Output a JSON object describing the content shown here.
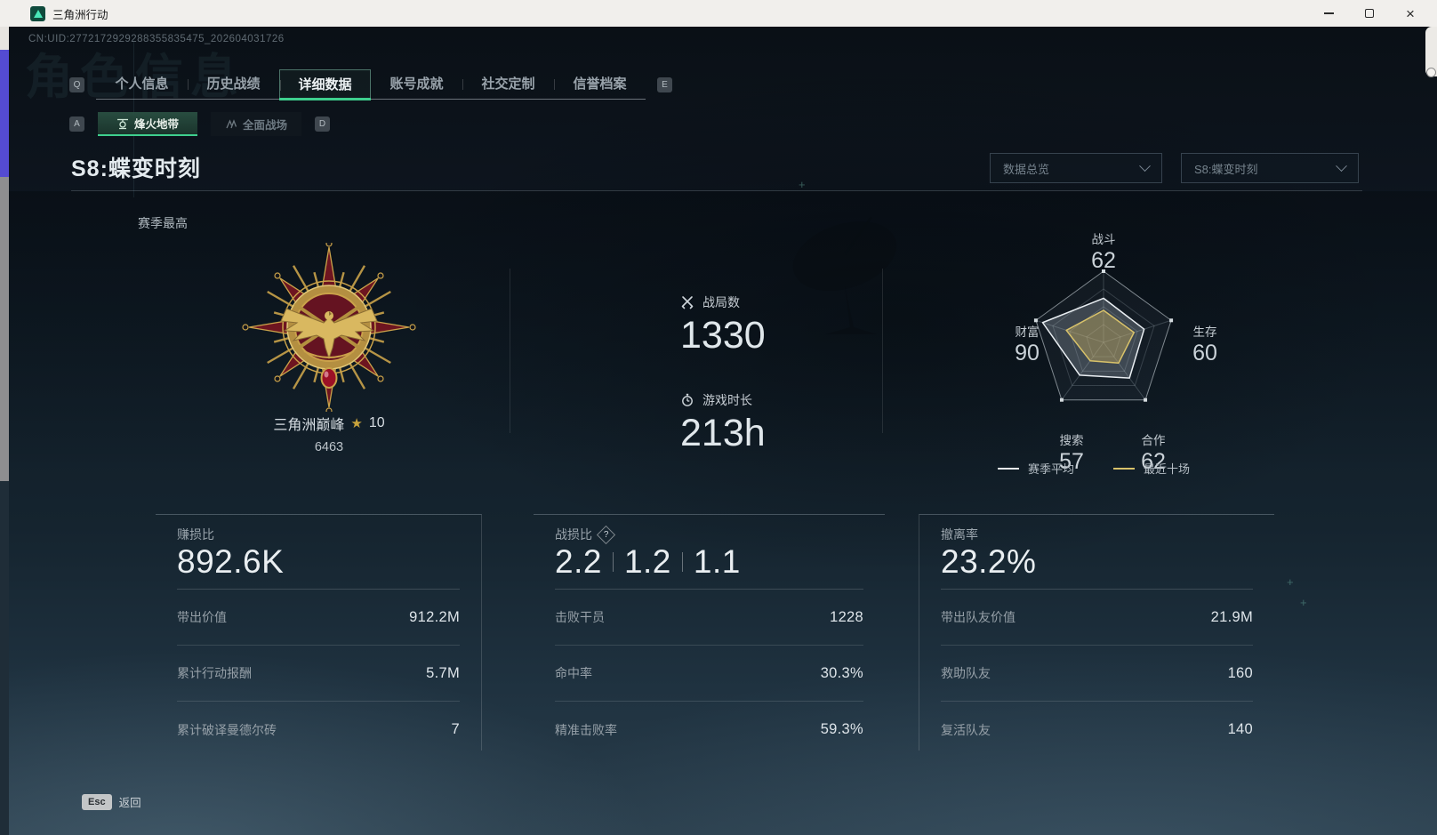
{
  "window": {
    "title": "三角洲行动",
    "close_glyph": "×"
  },
  "header": {
    "uid": "CN:UID:2772172929288355835475_202604031726",
    "watermark": "角色信息"
  },
  "nav": {
    "key_left": "Q",
    "key_right": "E",
    "tabs": [
      {
        "label": "个人信息"
      },
      {
        "label": "历史战绩"
      },
      {
        "label": "详细数据",
        "active": true
      },
      {
        "label": "账号成就"
      },
      {
        "label": "社交定制"
      },
      {
        "label": "信誉档案"
      }
    ]
  },
  "mode_nav": {
    "key_left": "A",
    "key_right": "D",
    "tabs": [
      {
        "label": "烽火地带",
        "icon": "helicopter-icon",
        "active": true
      },
      {
        "label": "全面战场",
        "icon": "battlefield-icon"
      }
    ]
  },
  "season": {
    "title": "S8:蝶变时刻",
    "filter_left": {
      "value": "数据总览"
    },
    "filter_right": {
      "value": "S8:蝶变时刻"
    },
    "section_label": "赛季最高"
  },
  "medal": {
    "name": "三角洲巅峰",
    "star_glyph": "★",
    "level": "10",
    "score": "6463"
  },
  "overview": {
    "battles": {
      "icon": "crossed-swords-icon",
      "label": "战局数",
      "value": "1330"
    },
    "playtime": {
      "icon": "stopwatch-icon",
      "label": "游戏时长",
      "value": "213h"
    }
  },
  "chart_data": {
    "type": "radar",
    "categories": [
      "战斗",
      "生存",
      "合作",
      "搜索",
      "财富"
    ],
    "axis_display_values": [
      "62",
      "60",
      "62",
      "57",
      "90"
    ],
    "max": 100,
    "rings": 4,
    "series": [
      {
        "name": "赛季平均",
        "color": "#e9eef2",
        "fill": "rgba(190,205,215,0.25)",
        "values": [
          62,
          60,
          62,
          57,
          90
        ]
      },
      {
        "name": "最近十场",
        "color": "#d8c26a",
        "fill": "rgba(214,185,96,0.38)",
        "values": [
          45,
          45,
          36,
          32,
          55
        ]
      }
    ],
    "legend_position": "bottom"
  },
  "cards": [
    {
      "title": "赚损比",
      "value": "892.6K",
      "rows": [
        {
          "label": "带出价值",
          "value": "912.2M"
        },
        {
          "label": "累计行动报酬",
          "value": "5.7M"
        },
        {
          "label": "累计破译曼德尔砖",
          "value": "7"
        }
      ]
    },
    {
      "title": "战损比",
      "help_icon": "?",
      "value_parts": [
        "2.2",
        "1.2",
        "1.1"
      ],
      "rows": [
        {
          "label": "击败干员",
          "value": "1228"
        },
        {
          "label": "命中率",
          "value": "30.3%"
        },
        {
          "label": "精准击败率",
          "value": "59.3%"
        }
      ]
    },
    {
      "title": "撤离率",
      "value": "23.2%",
      "rows": [
        {
          "label": "带出队友价值",
          "value": "21.9M"
        },
        {
          "label": "救助队友",
          "value": "160"
        },
        {
          "label": "复活队友",
          "value": "140"
        }
      ]
    }
  ],
  "footer": {
    "key": "Esc",
    "label": "返回"
  },
  "decor": {
    "plus_glyph": "+"
  },
  "colors": {
    "accent": "#3ecf8e",
    "gold": "#c9a43c"
  }
}
